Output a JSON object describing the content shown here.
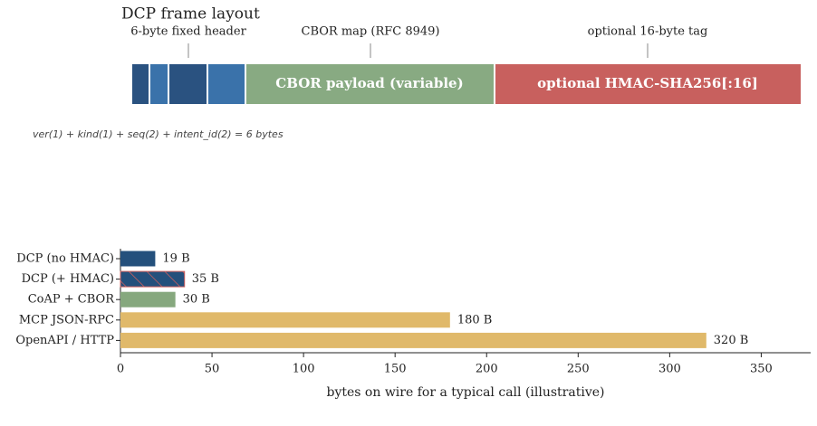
{
  "frame": {
    "title": "DCP frame layout",
    "labels": [
      "6-byte fixed header",
      "CBOR map (RFC 8949)",
      "optional 16-byte tag"
    ],
    "payload": "CBOR payload (variable)",
    "tag": "optional HMAC-SHA256[:16]",
    "caption": "ver(1) + kind(1) + seq(2) + intent_id(2) = 6 bytes"
  },
  "chart_data": {
    "type": "barh",
    "categories": [
      "DCP (no HMAC)",
      "DCP (+ HMAC)",
      "CoAP + CBOR",
      "MCP JSON-RPC",
      "OpenAPI / HTTP"
    ],
    "values": [
      19,
      35,
      30,
      180,
      320
    ],
    "value_labels": [
      "19 B",
      "35 B",
      "30 B",
      "180 B",
      "320 B"
    ],
    "colors": [
      "#24507c",
      "#24507c",
      "#86a87e",
      "#e0b96a",
      "#e0b96a"
    ],
    "hatched": [
      false,
      true,
      false,
      false,
      false
    ],
    "hatch_color": "#d0605e",
    "xlim": [
      0,
      377
    ],
    "xticks": [
      0,
      50,
      100,
      150,
      200,
      250,
      300,
      350
    ],
    "xlabel": "bytes on wire for a typical call (illustrative)"
  }
}
